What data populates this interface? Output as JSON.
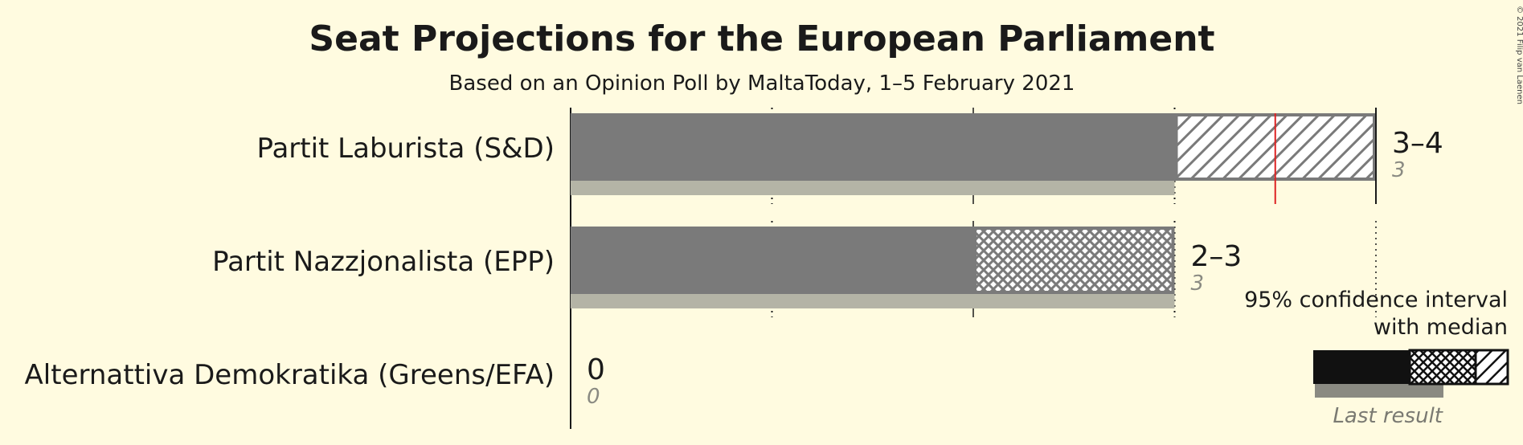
{
  "chart_data": {
    "type": "bar",
    "title": "Seat Projections for the European Parliament",
    "subtitle": "Based on an Opinion Poll by MaltaToday, 1–5 February 2021",
    "copyright": "© 2021 Filip van Laenen",
    "xlim": [
      0,
      4
    ],
    "grid": true,
    "colors": {
      "background": "#fffbe0",
      "bar": "#7a7a7a",
      "last_result": "#b4b4a6",
      "median_line": "#dd2222",
      "legend_bar": "#111111",
      "legend_last_result": "#8a8a82"
    },
    "parties": [
      {
        "name": "Partit Laburista (S&D)",
        "ci_low": 3,
        "ci_high": 4,
        "median": 3.5,
        "range_label": "3–4",
        "last_result": 3,
        "last_label": "3"
      },
      {
        "name": "Partit Nazzjonalista (EPP)",
        "ci_low": 2,
        "ci_high": 3,
        "median": 2,
        "range_label": "2–3",
        "last_result": 3,
        "last_label": "3"
      },
      {
        "name": "Alternattiva Demokratika (Greens/EFA)",
        "ci_low": 0,
        "ci_high": 0,
        "median": 0,
        "range_label": "0",
        "last_result": 0,
        "last_label": "0"
      }
    ],
    "legend": {
      "line1": "95% confidence interval",
      "line2": "with median",
      "last_result": "Last result",
      "position": "bottom-right"
    }
  }
}
